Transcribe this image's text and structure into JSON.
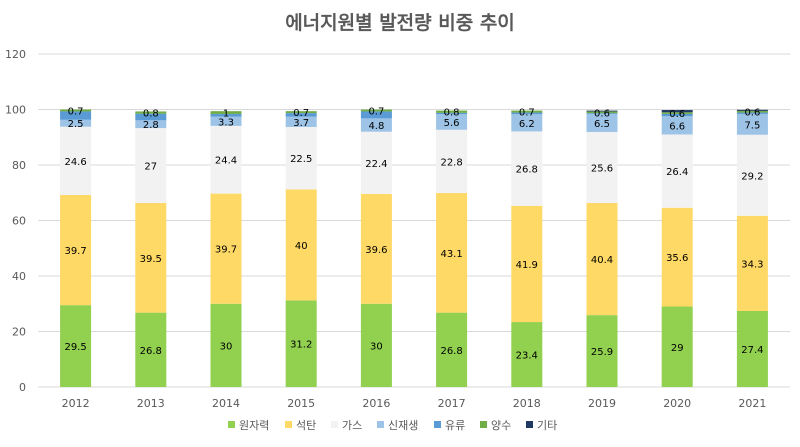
{
  "chart_data": {
    "type": "bar",
    "stacked": true,
    "title": "에너지원별 발전량 비중 추이",
    "xlabel": "",
    "ylabel": "",
    "ylim": [
      0,
      120
    ],
    "yticks": [
      0,
      20,
      40,
      60,
      80,
      100,
      120
    ],
    "grid": true,
    "legend_position": "bottom",
    "categories": [
      "2012",
      "2013",
      "2014",
      "2015",
      "2016",
      "2017",
      "2018",
      "2019",
      "2020",
      "2021"
    ],
    "series": [
      {
        "name": "원자력",
        "color": "#92d050",
        "values": [
          29.5,
          26.8,
          30,
          31.2,
          30,
          26.8,
          23.4,
          25.9,
          29,
          27.4
        ],
        "labels": [
          "29.5",
          "26.8",
          "30",
          "31.2",
          "30",
          "26.8",
          "23.4",
          "25.9",
          "29",
          "27.4"
        ]
      },
      {
        "name": "석탄",
        "color": "#ffd966",
        "values": [
          39.7,
          39.5,
          39.7,
          40,
          39.6,
          43.1,
          41.9,
          40.4,
          35.6,
          34.3
        ],
        "labels": [
          "39.7",
          "39.5",
          "39.7",
          "40",
          "39.6",
          "43.1",
          "41.9",
          "40.4",
          "35.6",
          "34.3"
        ]
      },
      {
        "name": "가스",
        "color": "#f2f2f2",
        "values": [
          24.6,
          27,
          24.4,
          22.5,
          22.4,
          22.8,
          26.8,
          25.6,
          26.4,
          29.2
        ],
        "labels": [
          "24.6",
          "27",
          "24.4",
          "22.5",
          "22.4",
          "22.8",
          "26.8",
          "25.6",
          "26.4",
          "29.2"
        ]
      },
      {
        "name": "신재생",
        "color": "#9dc3e6",
        "values": [
          2.5,
          2.8,
          3.3,
          3.7,
          4.8,
          5.6,
          6.2,
          6.5,
          6.6,
          7.5
        ],
        "labels": [
          "2.5",
          "2.8",
          "3.3",
          "3.7",
          "4.8",
          "5.6",
          "6.2",
          "6.5",
          "6.6",
          "7.5"
        ]
      },
      {
        "name": "유류",
        "color": "#5b9bd5",
        "values": [
          3.0,
          2.4,
          1.0,
          1.3,
          2.5,
          0.5,
          0.6,
          0.3,
          0.8,
          0.5
        ],
        "labels": [
          "",
          "",
          "",
          "",
          "",
          "",
          "",
          "",
          "",
          ""
        ]
      },
      {
        "name": "양수",
        "color": "#70ad47",
        "values": [
          0.7,
          0.8,
          1,
          0.7,
          0.7,
          0.8,
          0.7,
          0.6,
          0.6,
          0.6
        ],
        "labels": [
          "0.7",
          "0.8",
          "1",
          "0.7",
          "0.7",
          "0.8",
          "0.7",
          "0.6",
          "0.6",
          "0.6"
        ]
      },
      {
        "name": "기타",
        "color": "#203864",
        "values": [
          0,
          0,
          0,
          0,
          0,
          0,
          0,
          0.3,
          0.8,
          0.4
        ],
        "labels": [
          "",
          "",
          "",
          "",
          "",
          "",
          "",
          "",
          "",
          ""
        ]
      }
    ]
  }
}
